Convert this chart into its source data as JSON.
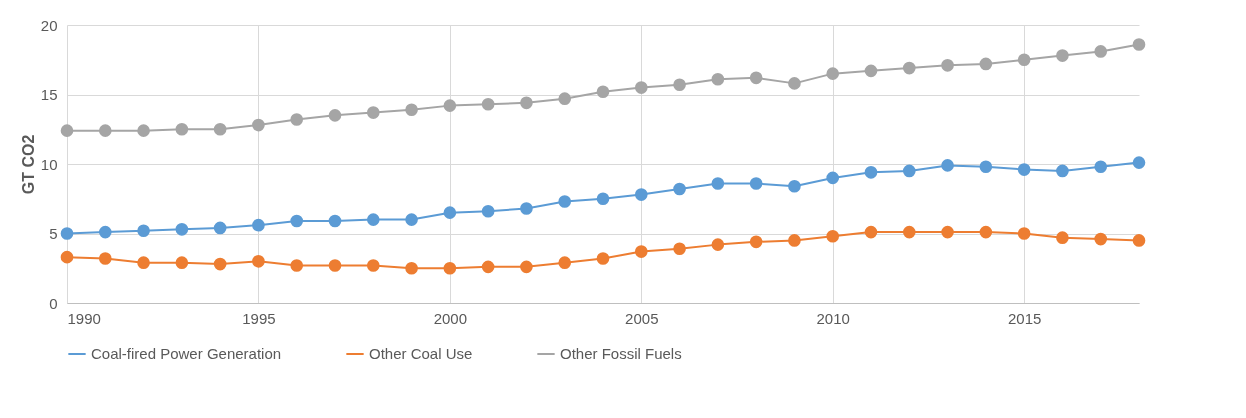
{
  "chart_data": {
    "type": "line",
    "ylabel": "GT CO2",
    "x": [
      1990,
      1991,
      1992,
      1993,
      1994,
      1995,
      1996,
      1997,
      1998,
      1999,
      2000,
      2001,
      2002,
      2003,
      2004,
      2005,
      2006,
      2007,
      2008,
      2009,
      2010,
      2011,
      2012,
      2013,
      2014,
      2015,
      2016,
      2017,
      2018
    ],
    "series": [
      {
        "name": "Coal-fired Power Generation",
        "color": "#5b9bd5",
        "values": [
          5.0,
          5.1,
          5.2,
          5.3,
          5.4,
          5.6,
          5.9,
          5.9,
          6.0,
          6.0,
          6.5,
          6.6,
          6.8,
          7.3,
          7.5,
          7.8,
          8.2,
          8.6,
          8.6,
          8.4,
          9.0,
          9.4,
          9.5,
          9.9,
          9.8,
          9.6,
          9.5,
          9.8,
          10.1
        ]
      },
      {
        "name": "Other Coal Use",
        "color": "#ed7d31",
        "values": [
          3.3,
          3.2,
          2.9,
          2.9,
          2.8,
          3.0,
          2.7,
          2.7,
          2.7,
          2.5,
          2.5,
          2.6,
          2.6,
          2.9,
          3.2,
          3.7,
          3.9,
          4.2,
          4.4,
          4.5,
          4.8,
          5.1,
          5.1,
          5.1,
          5.1,
          5.0,
          4.7,
          4.6,
          4.5
        ]
      },
      {
        "name": "Other Fossil Fuels",
        "color": "#a5a5a5",
        "values": [
          12.4,
          12.4,
          12.4,
          12.5,
          12.5,
          12.8,
          13.2,
          13.5,
          13.7,
          13.9,
          14.2,
          14.3,
          14.4,
          14.7,
          15.2,
          15.5,
          15.7,
          16.1,
          16.2,
          15.8,
          16.5,
          16.7,
          16.9,
          17.1,
          17.2,
          17.5,
          17.8,
          18.1,
          18.6
        ]
      }
    ],
    "xlim": [
      1990,
      2018
    ],
    "xticks": [
      1990,
      1995,
      2000,
      2005,
      2010,
      2015
    ],
    "ylim": [
      0,
      20
    ],
    "yticks": [
      0,
      5,
      10,
      15,
      20
    ],
    "grid": true,
    "legend": "bottom",
    "marker": "circle",
    "line_style": "solid"
  }
}
